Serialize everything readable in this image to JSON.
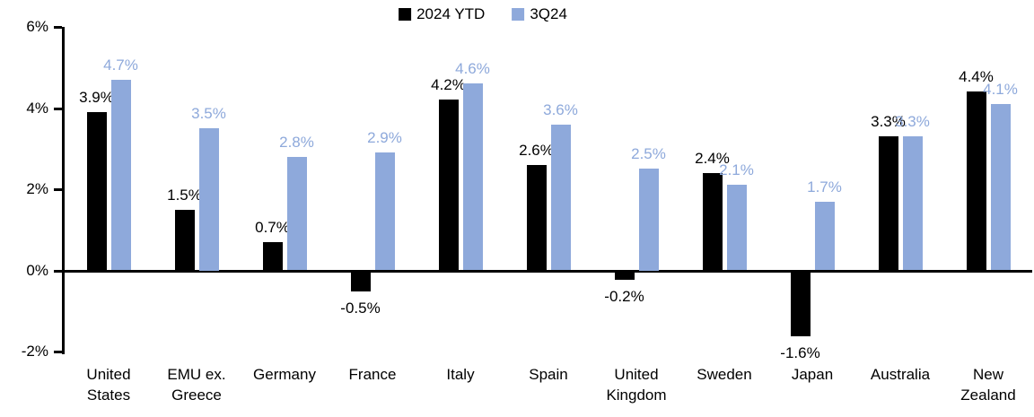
{
  "chart_data": {
    "type": "bar",
    "title": "",
    "xlabel": "",
    "ylabel": "",
    "ylim": [
      -2,
      6
    ],
    "yticks": [
      {
        "value": 6,
        "label": "6%"
      },
      {
        "value": 4,
        "label": "4%"
      },
      {
        "value": 2,
        "label": "2%"
      },
      {
        "value": 0,
        "label": "0%"
      },
      {
        "value": -2,
        "label": "-2%"
      }
    ],
    "grid": "off",
    "legend_position": "top-center",
    "categories": [
      "United\nStates",
      "EMU ex.\nGreece",
      "Germany",
      "France",
      "Italy",
      "Spain",
      "United\nKingdom",
      "Sweden",
      "Japan",
      "Australia",
      "New\nZealand"
    ],
    "series": [
      {
        "name": "2024 YTD",
        "color": "#000000",
        "label_color": "#000000",
        "values": [
          3.9,
          1.5,
          0.7,
          -0.5,
          4.2,
          2.6,
          -0.2,
          2.4,
          -1.6,
          3.3,
          4.4
        ],
        "labels": [
          "3.9%",
          "1.5%",
          "0.7%",
          "-0.5%",
          "4.2%",
          "2.6%",
          "-0.2%",
          "2.4%",
          "-1.6%",
          "3.3%",
          "4.4%"
        ]
      },
      {
        "name": "3Q24",
        "color": "#8EA9DB",
        "label_color": "#8EA9DB",
        "values": [
          4.7,
          3.5,
          2.8,
          2.9,
          4.6,
          3.6,
          2.5,
          2.1,
          1.7,
          3.3,
          4.1
        ],
        "labels": [
          "4.7%",
          "3.5%",
          "2.8%",
          "2.9%",
          "4.6%",
          "3.6%",
          "2.5%",
          "2.1%",
          "1.7%",
          "3.3%",
          "4.1%"
        ]
      }
    ]
  }
}
